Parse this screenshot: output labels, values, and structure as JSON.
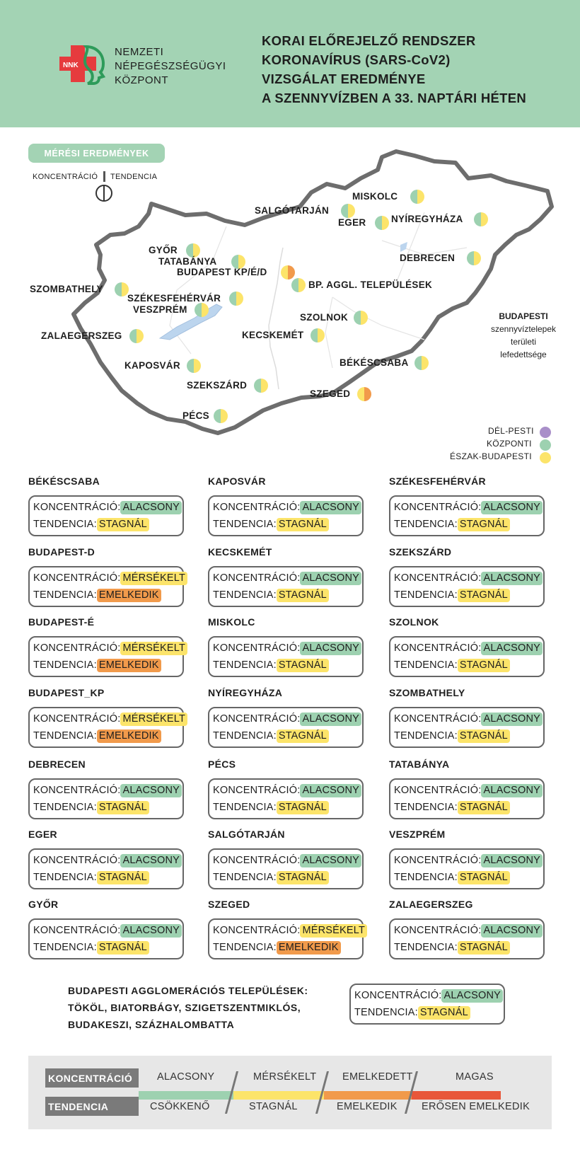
{
  "header": {
    "logo_text": "NNK",
    "org_lines": [
      "NEMZETI",
      "NÉPEGÉSZSÉGÜGYI",
      "KÖZPONT"
    ],
    "title_lines": [
      "KORAI ELŐREJELZŐ RENDSZER",
      "KORONAVÍRUS (SARS-CoV2)",
      "VIZSGÁLAT EREDMÉNYE",
      "A SZENNYVÍZBEN A 33. NAPTÁRI HÉTEN"
    ]
  },
  "map": {
    "section_label": "MÉRÉSI EREDMÉNYEK",
    "key_concentration": "KONCENTRÁCIÓ",
    "key_tendency": "TENDENCIA",
    "cities": [
      {
        "name": "MISKOLC",
        "conc": "#9dd1b0",
        "tend": "#fce46a"
      },
      {
        "name": "SALGÓTARJÁN",
        "conc": "#9dd1b0",
        "tend": "#fce46a"
      },
      {
        "name": "EGER",
        "conc": "#9dd1b0",
        "tend": "#fce46a"
      },
      {
        "name": "NYÍREGYHÁZA",
        "conc": "#9dd1b0",
        "tend": "#fce46a"
      },
      {
        "name": "DEBRECEN",
        "conc": "#9dd1b0",
        "tend": "#fce46a"
      },
      {
        "name": "GYŐR",
        "conc": "#9dd1b0",
        "tend": "#fce46a"
      },
      {
        "name": "TATABÁNYA",
        "conc": "#9dd1b0",
        "tend": "#fce46a"
      },
      {
        "name": "BUDAPEST KP/É/D",
        "conc": "#fce46a",
        "tend": "#f19a4b"
      },
      {
        "name": "BP. AGGL. TELEPÜLÉSEK",
        "conc": "#9dd1b0",
        "tend": "#fce46a"
      },
      {
        "name": "SZOMBATHELY",
        "conc": "#9dd1b0",
        "tend": "#fce46a"
      },
      {
        "name": "SZÉKESFEHÉRVÁR",
        "conc": "#9dd1b0",
        "tend": "#fce46a"
      },
      {
        "name": "VESZPRÉM",
        "conc": "#9dd1b0",
        "tend": "#fce46a"
      },
      {
        "name": "SZOLNOK",
        "conc": "#9dd1b0",
        "tend": "#fce46a"
      },
      {
        "name": "ZALAEGERSZEG",
        "conc": "#9dd1b0",
        "tend": "#fce46a"
      },
      {
        "name": "KECSKEMÉT",
        "conc": "#9dd1b0",
        "tend": "#fce46a"
      },
      {
        "name": "BÉKÉSCSABA",
        "conc": "#9dd1b0",
        "tend": "#fce46a"
      },
      {
        "name": "KAPOSVÁR",
        "conc": "#9dd1b0",
        "tend": "#fce46a"
      },
      {
        "name": "SZEKSZÁRD",
        "conc": "#9dd1b0",
        "tend": "#fce46a"
      },
      {
        "name": "SZEGED",
        "conc": "#fce46a",
        "tend": "#f19a4b"
      },
      {
        "name": "PÉCS",
        "conc": "#9dd1b0",
        "tend": "#fce46a"
      }
    ],
    "bp_legend": {
      "title_bold": "BUDAPESTI",
      "title_lines": [
        "szennyvíztelepek",
        "területi",
        "lefedettsége"
      ],
      "items": [
        {
          "label": "DÉL-PESTI",
          "color": "#a98fc9"
        },
        {
          "label": "KÖZPONTI",
          "color": "#9dd1b0"
        },
        {
          "label": "ÉSZAK-BUDAPESTI",
          "color": "#fce46a"
        }
      ]
    }
  },
  "labels": {
    "concentration": "KONCENTRÁCIÓ:",
    "tendency": "TENDENCIA:"
  },
  "cards": [
    {
      "city": "BÉKÉSCSABA",
      "conc": "ALACSONY",
      "tend": "STAGNÁL"
    },
    {
      "city": "KAPOSVÁR",
      "conc": "ALACSONY",
      "tend": "STAGNÁL"
    },
    {
      "city": "SZÉKESFEHÉRVÁR",
      "conc": "ALACSONY",
      "tend": "STAGNÁL"
    },
    {
      "city": "BUDAPEST-D",
      "conc": "MÉRSÉKELT",
      "tend": "EMELKEDIK"
    },
    {
      "city": "KECSKEMÉT",
      "conc": "ALACSONY",
      "tend": "STAGNÁL"
    },
    {
      "city": "SZEKSZÁRD",
      "conc": "ALACSONY",
      "tend": "STAGNÁL"
    },
    {
      "city": "BUDAPEST-É",
      "conc": "MÉRSÉKELT",
      "tend": "EMELKEDIK"
    },
    {
      "city": "MISKOLC",
      "conc": "ALACSONY",
      "tend": "STAGNÁL"
    },
    {
      "city": "SZOLNOK",
      "conc": "ALACSONY",
      "tend": "STAGNÁL"
    },
    {
      "city": "BUDAPEST_KP",
      "conc": "MÉRSÉKELT",
      "tend": "EMELKEDIK"
    },
    {
      "city": "NYÍREGYHÁZA",
      "conc": "ALACSONY",
      "tend": "STAGNÁL"
    },
    {
      "city": "SZOMBATHELY",
      "conc": "ALACSONY",
      "tend": "STAGNÁL"
    },
    {
      "city": "DEBRECEN",
      "conc": "ALACSONY",
      "tend": "STAGNÁL"
    },
    {
      "city": "PÉCS",
      "conc": "ALACSONY",
      "tend": "STAGNÁL"
    },
    {
      "city": "TATABÁNYA",
      "conc": "ALACSONY",
      "tend": "STAGNÁL"
    },
    {
      "city": "EGER",
      "conc": "ALACSONY",
      "tend": "STAGNÁL"
    },
    {
      "city": "SALGÓTARJÁN",
      "conc": "ALACSONY",
      "tend": "STAGNÁL"
    },
    {
      "city": "VESZPRÉM",
      "conc": "ALACSONY",
      "tend": "STAGNÁL"
    },
    {
      "city": "GYŐR",
      "conc": "ALACSONY",
      "tend": "STAGNÁL"
    },
    {
      "city": "SZEGED",
      "conc": "MÉRSÉKELT",
      "tend": "EMELKEDIK"
    },
    {
      "city": "ZALAEGERSZEG",
      "conc": "ALACSONY",
      "tend": "STAGNÁL"
    }
  ],
  "agglomeration": {
    "lines": [
      "BUDAPESTI AGGLOMERÁCIÓS TELEPÜLÉSEK:",
      "TÖKÖL, BIATORBÁGY, SZIGETSZENTMIKLÓS,",
      "BUDAKESZI, SZÁZHALOMBATTA"
    ],
    "conc": "ALACSONY",
    "tend": "STAGNÁL"
  },
  "bottom_legend": {
    "concentration_label": "KONCENTRÁCIÓ",
    "tendency_label": "TENDENCIA",
    "concentration_levels": [
      "ALACSONY",
      "MÉRSÉKELT",
      "EMELKEDETT",
      "MAGAS"
    ],
    "tendency_levels": [
      "CSÖKKENŐ",
      "STAGNÁL",
      "EMELKEDIK",
      "ERŐSEN EMELKEDIK"
    ],
    "level_colors": [
      "#9dd1b0",
      "#fce46a",
      "#f19a4b",
      "#e8573a"
    ]
  },
  "colors": {
    "header_bg": "#a3d3b4",
    "alacsony": "#9dd1b0",
    "mersekelt": "#fce46a",
    "emelkedik": "#f19a4b",
    "magas": "#e8573a",
    "logo_red": "#e63b3e",
    "logo_green": "#2e9b5a"
  }
}
